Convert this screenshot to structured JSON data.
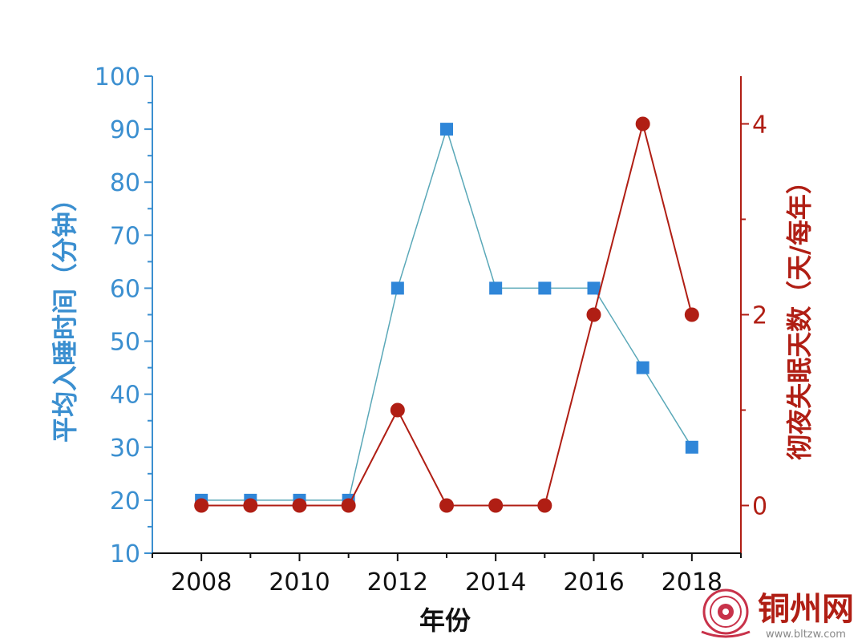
{
  "chart_data": {
    "type": "line",
    "xlabel": "年份",
    "ylabel_left": "平均入睡时间（分钟）",
    "ylabel_right": "彻夜失眠天数（天/每年）",
    "x": [
      2008,
      2009,
      2010,
      2011,
      2012,
      2013,
      2014,
      2015,
      2016,
      2017,
      2018
    ],
    "x_ticks": [
      "2008",
      "2010",
      "2012",
      "2014",
      "2016",
      "2018"
    ],
    "xlim": [
      2007,
      2019
    ],
    "ylim_left": [
      10,
      100
    ],
    "y_ticks_left": [
      "10",
      "20",
      "30",
      "40",
      "50",
      "60",
      "70",
      "80",
      "90",
      "100"
    ],
    "ylim_right": [
      -0.5,
      4.5
    ],
    "y_ticks_right": [
      "0",
      "2",
      "4"
    ],
    "grid": false,
    "legend": "none",
    "series": [
      {
        "axis": "left",
        "marker": "square",
        "color": "#2f86d8",
        "line_color": "#5aa8b8",
        "values": [
          20,
          20,
          20,
          20,
          60,
          90,
          60,
          60,
          60,
          45,
          30
        ]
      },
      {
        "axis": "right",
        "marker": "circle",
        "color": "#b01e14",
        "line_color": "#b01e14",
        "values": [
          0,
          0,
          0,
          0,
          1,
          0,
          0,
          0,
          2,
          4,
          2
        ]
      }
    ]
  },
  "watermark": {
    "name": "铜州网",
    "url": "www.bltzw.com"
  }
}
